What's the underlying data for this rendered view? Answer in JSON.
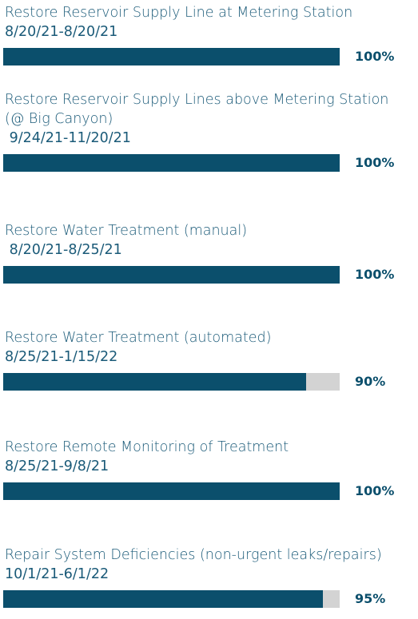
{
  "chart_data": {
    "type": "progress",
    "categories": [
      "Restore Reservoir Supply Line at Metering Station",
      "Restore Reservoir Supply Lines above Metering Station (@ Big Canyon)",
      "Restore Water Treatment (manual)",
      "Restore Water Treatment (automated)",
      "Restore Remote Monitoring of Treatment",
      "Repair System Deficiencies (non-urgent leaks/repairs)"
    ],
    "dates": [
      "8/20/21-8/20/21",
      " 9/24/21-11/20/21",
      " 8/20/21-8/25/21",
      "8/25/21-1/15/22",
      "8/25/21-9/8/21",
      "10/1/21-6/1/22"
    ],
    "values": [
      100,
      100,
      100,
      90,
      100,
      95
    ],
    "value_labels": [
      "100%",
      "100%",
      "100%",
      "90%",
      "100%",
      "95%"
    ],
    "xlim": [
      0,
      100
    ],
    "color": "#0b4f6c",
    "track_color": "#d3d3d3"
  }
}
